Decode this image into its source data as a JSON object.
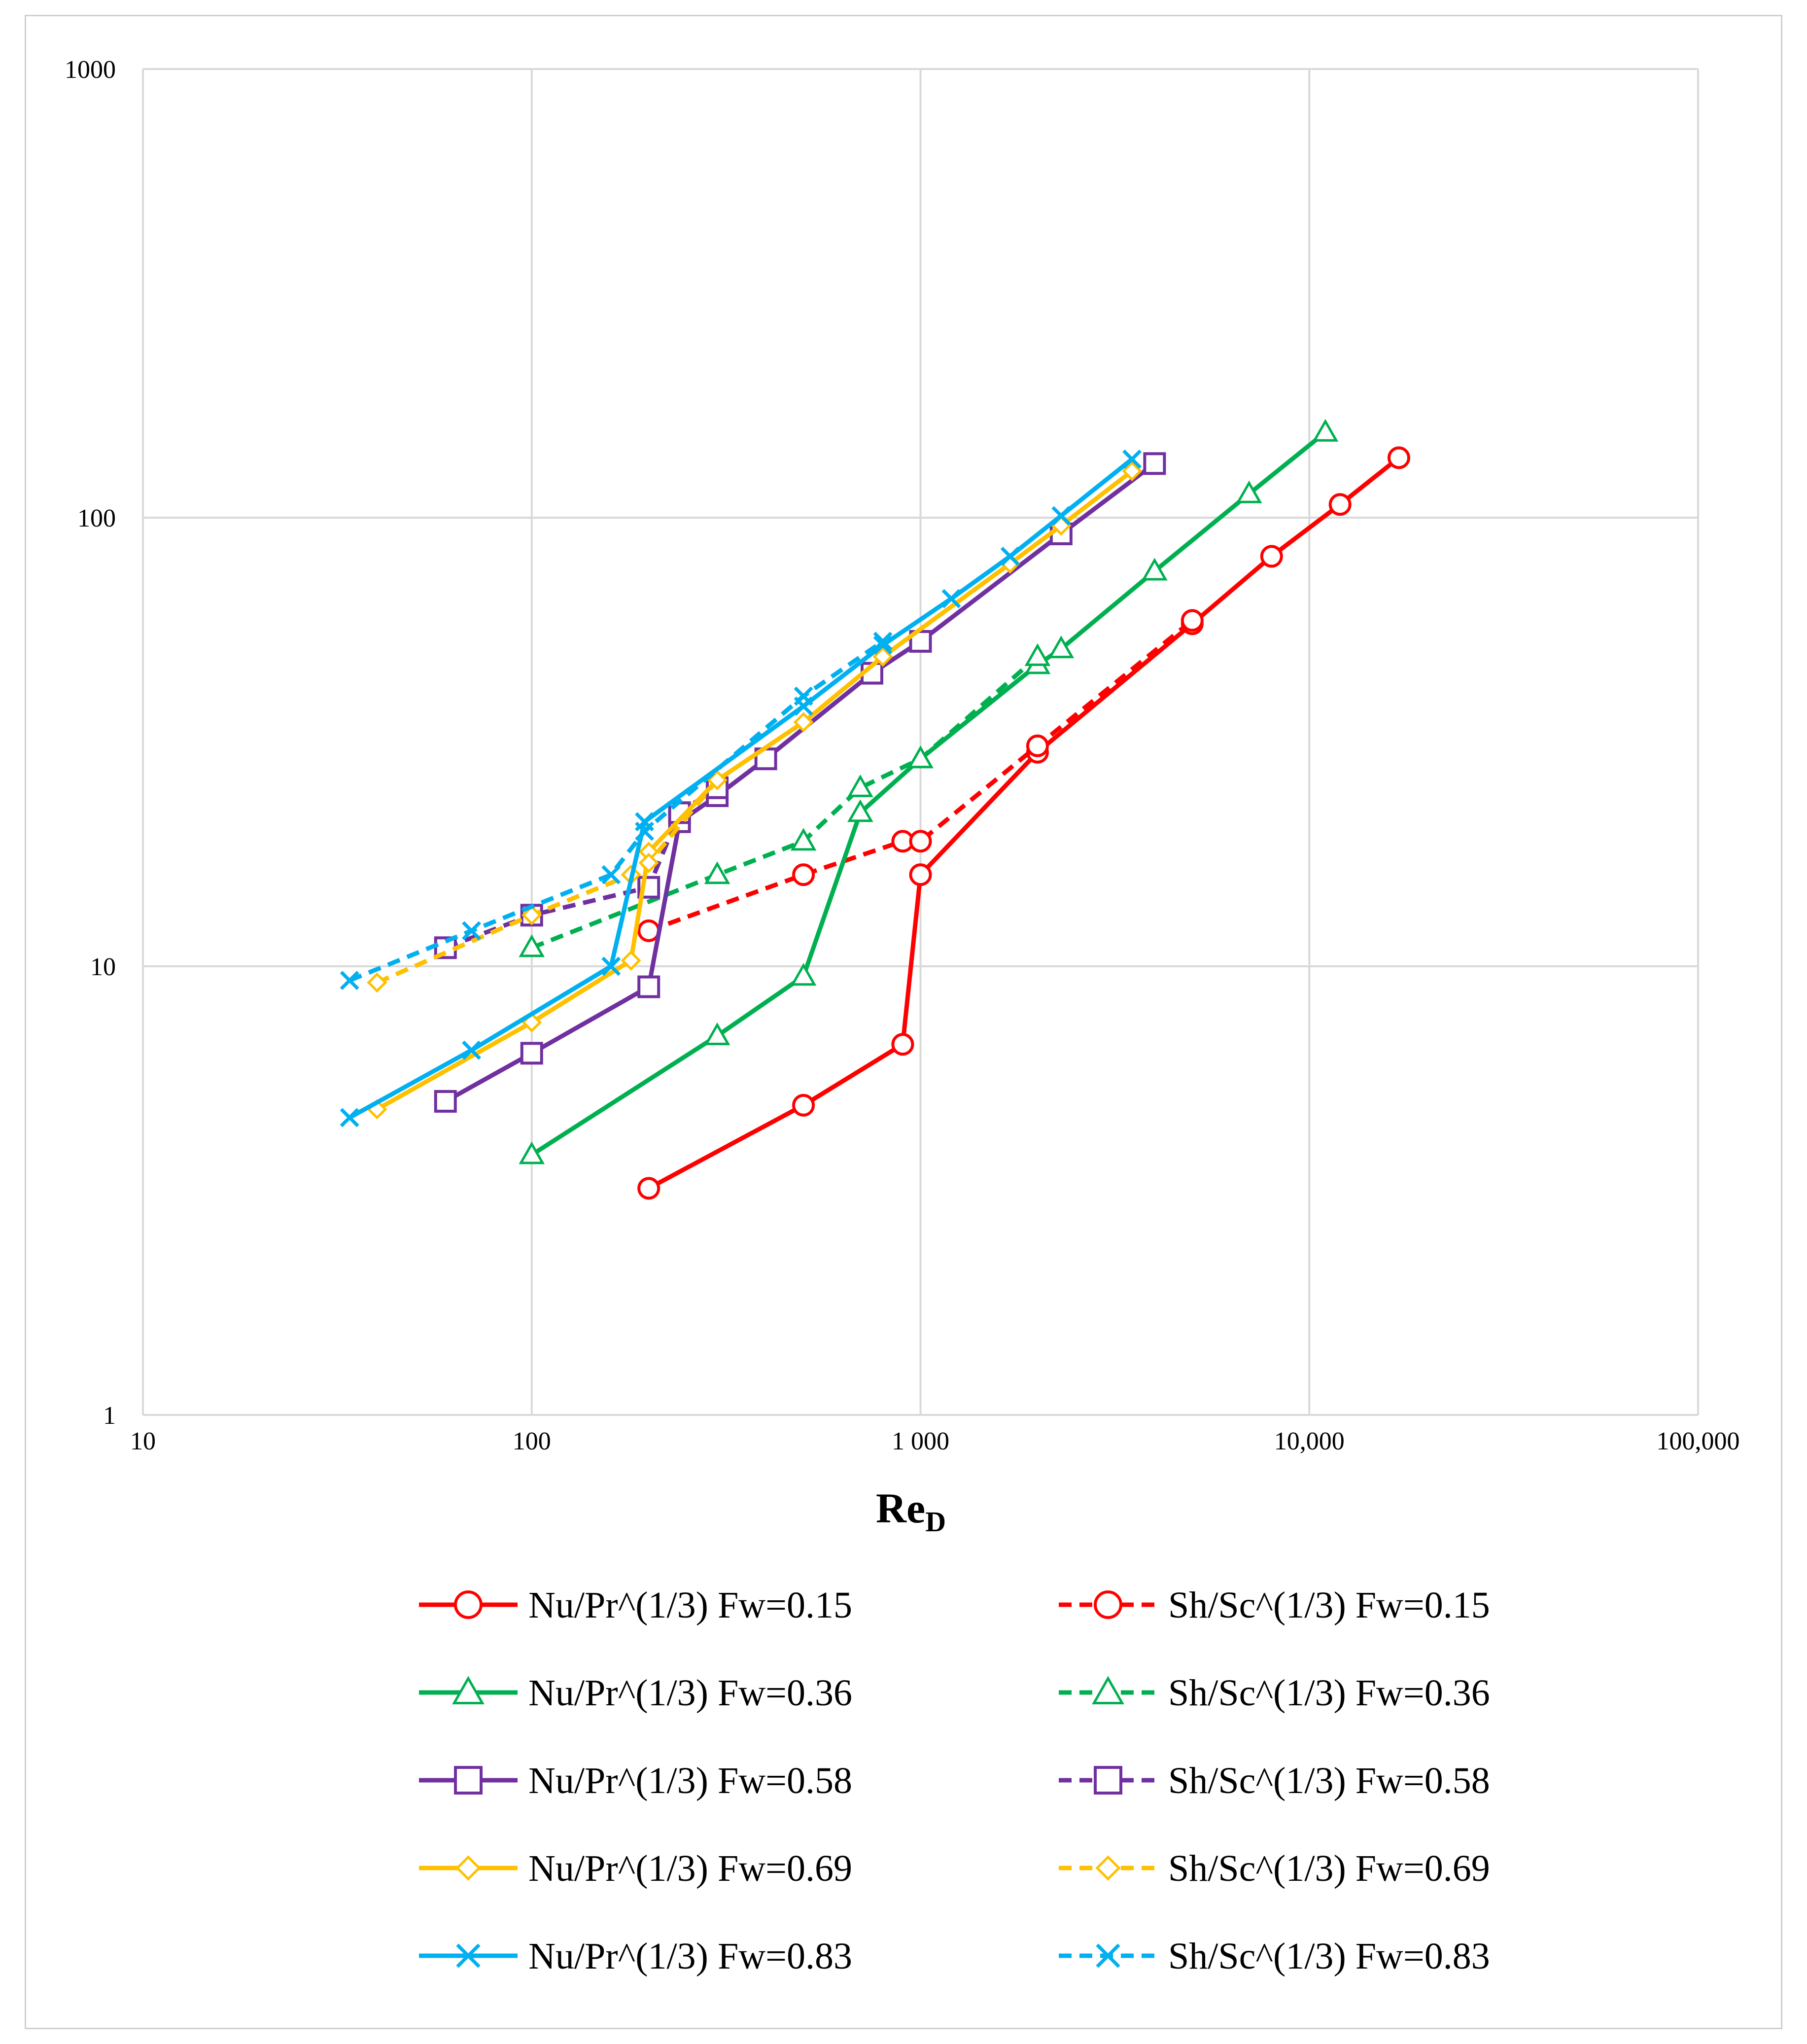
{
  "chart_data": {
    "type": "line",
    "title": "",
    "xlabel": "Re",
    "xlabel_sub": "D",
    "ylabel": "",
    "xscale": "log",
    "yscale": "log",
    "xlim": [
      10,
      100000
    ],
    "ylim": [
      1,
      1000
    ],
    "grid": true,
    "legend_position": "bottom",
    "x_tick_labels": [
      "10",
      "100",
      "1 000",
      "10,000",
      "100,000"
    ],
    "x_tick_values": [
      10,
      100,
      1000,
      10000,
      100000
    ],
    "y_tick_labels": [
      "1",
      "10",
      "100",
      "1000"
    ],
    "y_tick_values": [
      1,
      10,
      100,
      1000
    ],
    "series": [
      {
        "name": "Nu/Pr^(1/3) Fw=0.15",
        "color": "#ff0000",
        "dash": "solid",
        "marker": "circle",
        "x": [
          200,
          500,
          900,
          1000,
          2000,
          5000,
          8000,
          12000,
          17000
        ],
        "y": [
          3.2,
          4.9,
          6.7,
          16,
          30,
          58,
          82,
          107,
          136
        ]
      },
      {
        "name": "Sh/Sc^(1/3) Fw=0.15",
        "color": "#ff0000",
        "dash": "dashed",
        "marker": "circle",
        "x": [
          200,
          500,
          900,
          1000,
          2000,
          5000
        ],
        "y": [
          12,
          16,
          19,
          19,
          31,
          59
        ]
      },
      {
        "name": "Nu/Pr^(1/3) Fw=0.36",
        "color": "#00b050",
        "dash": "solid",
        "marker": "triangle",
        "x": [
          100,
          300,
          500,
          700,
          1000,
          2000,
          2300,
          4000,
          7000,
          11000
        ],
        "y": [
          3.8,
          7,
          9.5,
          22,
          29,
          47,
          51,
          76,
          113,
          155
        ]
      },
      {
        "name": "Sh/Sc^(1/3) Fw=0.36",
        "color": "#00b050",
        "dash": "dashed",
        "marker": "triangle",
        "x": [
          100,
          300,
          500,
          700,
          1000,
          2000
        ],
        "y": [
          11,
          16,
          19,
          25,
          29,
          49
        ]
      },
      {
        "name": "Nu/Pr^(1/3) Fw=0.58",
        "color": "#7030a0",
        "dash": "solid",
        "marker": "square",
        "x": [
          60,
          100,
          200,
          240,
          300,
          400,
          750,
          1000,
          2300,
          4000
        ],
        "y": [
          5,
          6.4,
          9,
          21,
          24,
          29,
          45,
          53,
          92,
          132
        ]
      },
      {
        "name": "Sh/Sc^(1/3) Fw=0.58",
        "color": "#7030a0",
        "dash": "dashed",
        "marker": "square",
        "x": [
          60,
          100,
          200,
          240,
          300
        ],
        "y": [
          11,
          13,
          15,
          22,
          25
        ]
      },
      {
        "name": "Nu/Pr^(1/3) Fw=0.69",
        "color": "#ffc000",
        "dash": "solid",
        "marker": "diamond",
        "x": [
          40,
          100,
          180,
          200,
          300,
          500,
          800,
          1700,
          2300,
          3500
        ],
        "y": [
          4.8,
          7.5,
          10.3,
          18,
          26,
          35,
          49,
          79,
          96,
          127
        ]
      },
      {
        "name": "Sh/Sc^(1/3) Fw=0.69",
        "color": "#ffc000",
        "dash": "dashed",
        "marker": "diamond",
        "x": [
          40,
          100,
          180,
          200,
          300
        ],
        "y": [
          9.2,
          13,
          16,
          17,
          26
        ]
      },
      {
        "name": "Nu/Pr^(1/3) Fw=0.83",
        "color": "#00b0f0",
        "dash": "solid",
        "marker": "x",
        "x": [
          34,
          70,
          160,
          195,
          500,
          800,
          1200,
          1700,
          2300,
          3500
        ],
        "y": [
          4.6,
          6.5,
          10,
          21,
          38,
          52,
          66,
          82,
          101,
          135
        ]
      },
      {
        "name": "Sh/Sc^(1/3) Fw=0.83",
        "color": "#00b0f0",
        "dash": "dashed",
        "marker": "x",
        "x": [
          34,
          70,
          160,
          195,
          500,
          800
        ],
        "y": [
          9.3,
          12,
          16,
          20,
          40,
          53
        ]
      }
    ]
  }
}
